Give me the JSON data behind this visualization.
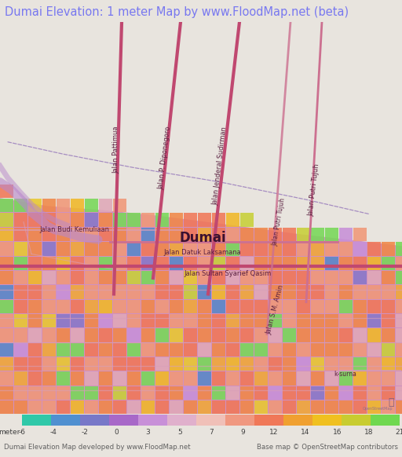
{
  "title": "Dumai Elevation: 1 meter Map by www.FloodMap.net (beta)",
  "title_color": "#7878f0",
  "title_bg": "#e8e4de",
  "title_fontsize": 10.5,
  "colorbar_ticks": [
    "-6",
    "-4",
    "-2",
    "0",
    "3",
    "5",
    "7",
    "9",
    "12",
    "14",
    "16",
    "18",
    "21"
  ],
  "colorbar_label": "meter",
  "footer_left": "Dumai Elevation Map developed by www.FloodMap.net",
  "footer_right": "Base map © OpenStreetMap contributors",
  "colorbar_colors": [
    "#30c8a8",
    "#5090d0",
    "#7878c8",
    "#a868c8",
    "#c890d8",
    "#e0b0cc",
    "#f0c0b8",
    "#f09880",
    "#f07858",
    "#f0a030",
    "#f0c020",
    "#c8cc30",
    "#70d850"
  ],
  "sea_color": "#c8a0d8",
  "land_color": "#d898b8",
  "elev_base": "#d090c0",
  "road_main_color": "#c05080",
  "road_secondary_color": "#d080a0",
  "road_minor_color": "#c8a0c0",
  "fig_width": 5.12,
  "fig_height": 5.82,
  "dpi": 100
}
